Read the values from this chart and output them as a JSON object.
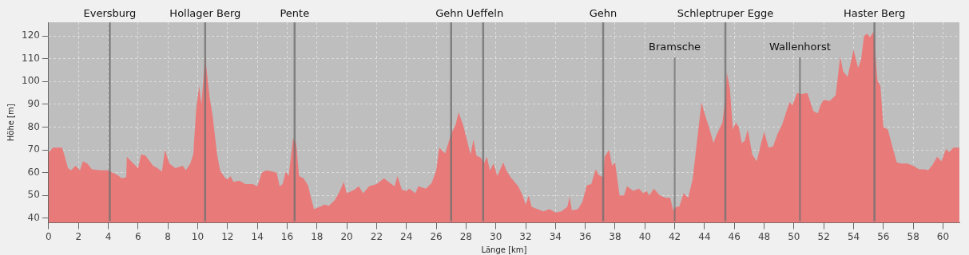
{
  "chart_data": {
    "type": "area",
    "xlabel": "Länge [km]",
    "ylabel": "Höhe [m]",
    "x": [
      0,
      0.3,
      0.6,
      0.9,
      1.0,
      1.3,
      1.5,
      1.8,
      2.1,
      2.3,
      2.6,
      2.9,
      3.5,
      4.0,
      4.3,
      4.6,
      4.9,
      5.2,
      5.25,
      5.6,
      6.0,
      6.2,
      6.5,
      7.0,
      7.3,
      7.6,
      7.8,
      8.1,
      8.5,
      9.0,
      9.2,
      9.5,
      9.7,
      9.9,
      10.1,
      10.25,
      10.5,
      10.8,
      11.0,
      11.3,
      11.5,
      11.8,
      12.0,
      12.2,
      12.4,
      12.8,
      13.2,
      13.7,
      14.0,
      14.3,
      14.6,
      15.0,
      15.3,
      15.5,
      15.7,
      15.9,
      16.1,
      16.4,
      16.6,
      16.8,
      17.1,
      17.4,
      17.6,
      17.8,
      18.2,
      18.5,
      18.8,
      19.2,
      19.5,
      19.8,
      20.0,
      20.5,
      20.8,
      21.1,
      21.5,
      22.0,
      22.5,
      22.8,
      23.2,
      23.4,
      23.7,
      24.0,
      24.2,
      24.6,
      24.8,
      25.3,
      25.7,
      26.0,
      26.2,
      26.6,
      27.0,
      27.3,
      27.5,
      27.8,
      28.0,
      28.3,
      28.5,
      28.7,
      29.0,
      29.2,
      29.4,
      29.6,
      29.85,
      30.1,
      30.5,
      30.7,
      31.0,
      31.5,
      31.8,
      32.0,
      32.2,
      32.4,
      32.8,
      33.2,
      33.6,
      34.0,
      34.4,
      34.8,
      34.95,
      35.1,
      35.5,
      35.8,
      36.1,
      36.4,
      36.7,
      36.9,
      37.2,
      37.3,
      37.6,
      37.8,
      38.0,
      38.3,
      38.6,
      38.8,
      39.2,
      39.6,
      39.9,
      40.1,
      40.3,
      40.6,
      41.0,
      41.4,
      41.7,
      41.9,
      42.1,
      42.3,
      42.6,
      42.9,
      43.2,
      43.5,
      43.8,
      44.0,
      44.3,
      44.6,
      44.8,
      45.2,
      45.4,
      45.5,
      45.7,
      45.9,
      46.1,
      46.3,
      46.5,
      46.7,
      46.9,
      47.2,
      47.5,
      47.8,
      48.0,
      48.3,
      48.6,
      48.9,
      49.2,
      49.5,
      49.7,
      49.9,
      50.2,
      50.5,
      50.9,
      51.3,
      51.6,
      51.8,
      52.0,
      52.4,
      52.8,
      53.1,
      53.3,
      53.6,
      54.0,
      54.3,
      54.5,
      54.7,
      54.9,
      55.1,
      55.35,
      55.6,
      55.8,
      56.0,
      56.3,
      56.6,
      56.9,
      57.2,
      57.6,
      58.0,
      58.4,
      58.8,
      59.0,
      59.3,
      59.6,
      59.9,
      60.2,
      60.4,
      60.7,
      61.1
    ],
    "values": [
      69,
      71,
      71,
      71,
      69,
      62,
      61,
      63,
      61,
      65,
      64,
      61.5,
      61,
      61,
      60,
      59,
      57.5,
      58,
      67,
      64.5,
      62,
      68,
      67.5,
      63,
      62,
      60.5,
      70,
      64,
      62,
      63,
      61,
      64,
      68,
      88,
      98,
      90,
      111,
      93,
      85,
      68,
      61,
      58,
      57,
      58.5,
      56,
      56.5,
      55,
      55,
      54,
      60,
      61,
      60.5,
      60,
      54,
      55,
      60.5,
      58.5,
      75,
      73,
      58.5,
      57.5,
      54.5,
      49,
      44,
      45,
      46,
      45.5,
      48,
      51.5,
      56,
      51,
      52.5,
      54,
      51,
      54,
      55,
      57.5,
      56,
      54,
      58.5,
      52.5,
      52,
      53,
      51,
      54,
      53,
      55.5,
      61,
      71,
      68.5,
      77,
      81,
      86.5,
      81,
      76,
      68,
      74.5,
      67.5,
      66.5,
      64,
      67,
      61,
      64,
      58.5,
      64.5,
      61,
      58,
      54,
      50,
      46,
      50,
      45,
      44,
      43,
      44,
      42.5,
      43,
      45,
      49.5,
      43.5,
      44,
      47,
      54.5,
      55,
      61.5,
      59,
      58,
      67,
      70,
      63,
      64.5,
      50,
      50,
      54,
      52,
      53,
      51,
      52,
      50,
      53,
      50,
      49,
      49,
      43.5,
      45,
      45,
      51,
      49,
      57,
      74,
      91,
      86,
      80,
      73,
      76.5,
      82,
      93,
      104,
      97,
      79,
      82,
      80,
      73,
      74,
      79,
      68,
      65,
      73,
      78,
      71,
      71.5,
      77,
      81,
      87,
      91,
      89.5,
      95,
      94.5,
      95,
      87,
      86,
      90,
      92,
      91.5,
      94,
      111,
      104.5,
      102,
      114,
      106,
      109.5,
      120,
      121,
      119.5,
      122,
      100.5,
      98,
      80,
      79,
      71.5,
      64.5,
      64,
      64,
      63,
      61.5,
      61.5,
      61,
      63.5,
      67,
      65,
      70.5,
      69,
      71,
      71
    ],
    "color": "#e87a7a",
    "xlim": [
      0,
      61.1
    ],
    "xticks": [
      0,
      2,
      4,
      6,
      8,
      10,
      12,
      14,
      16,
      18,
      20,
      22,
      24,
      26,
      28,
      30,
      32,
      34,
      36,
      38,
      40,
      42,
      44,
      46,
      48,
      50,
      52,
      54,
      56,
      58,
      60
    ],
    "ylim": [
      38,
      126
    ],
    "yticks": [
      40,
      50,
      60,
      70,
      80,
      90,
      100,
      110,
      120
    ],
    "grid": true,
    "legend": false,
    "marker": "none",
    "ref_lines": [
      {
        "axis": "x",
        "value": 4.1,
        "label": "Eversburg",
        "color": "#707070"
      },
      {
        "axis": "x",
        "value": 10.5,
        "label": "Hollager Berg",
        "color": "#707070"
      },
      {
        "axis": "x",
        "value": 16.5,
        "label": "Pente",
        "color": "#707070"
      },
      {
        "axis": "x",
        "value": 27.0,
        "label": "Gehn",
        "color": "#707070"
      },
      {
        "axis": "x",
        "value": 29.15,
        "label": "Ueffeln",
        "color": "#707070"
      },
      {
        "axis": "x",
        "value": 37.2,
        "label": "Gehn",
        "color": "#707070"
      },
      {
        "axis": "x",
        "value": 45.4,
        "label": "Schleptruper Egge",
        "color": "#707070"
      },
      {
        "axis": "x",
        "value": 55.4,
        "label": "Haster Berg",
        "color": "#707070"
      },
      {
        "axis": "x",
        "value": 42.0,
        "label": "Bramsche",
        "color": "#707070"
      },
      {
        "axis": "x",
        "value": 50.4,
        "label": "Wallenhorst",
        "color": "#707070"
      }
    ]
  }
}
